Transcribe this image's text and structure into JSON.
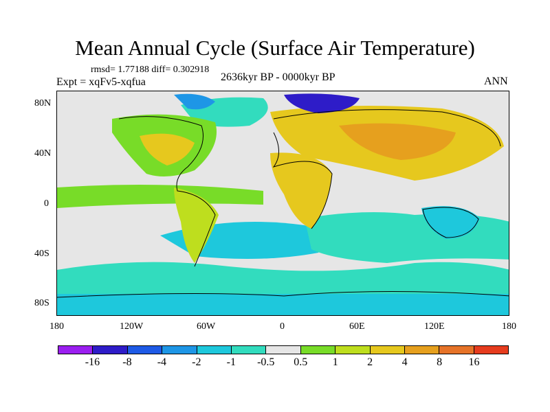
{
  "title": "Mean Annual Cycle (Surface Air Temperature)",
  "stats": "rmsd= 1.77188 diff= 0.302918",
  "experiment": "Expt = xqFv5-xqfua",
  "period": "2636kyr BP - 0000kyr BP",
  "season": "ANN",
  "lat_labels": [
    "80N",
    "40N",
    "0",
    "40S",
    "80S"
  ],
  "lon_labels": [
    "180",
    "120W",
    "60W",
    "0",
    "60E",
    "120E",
    "180"
  ],
  "colorbar": {
    "labels": [
      "-16",
      "-8",
      "-4",
      "-2",
      "-1",
      "-0.5",
      "0.5",
      "1",
      "2",
      "4",
      "8",
      "16"
    ],
    "colors": [
      "#9b1ff0",
      "#2e1cc8",
      "#1e5ae6",
      "#1e96e6",
      "#1ec8dc",
      "#32dcbe",
      "#e6e6e6",
      "#78dc28",
      "#bede1e",
      "#e6c81e",
      "#e6a01e",
      "#e67328",
      "#e63c1e"
    ]
  }
}
